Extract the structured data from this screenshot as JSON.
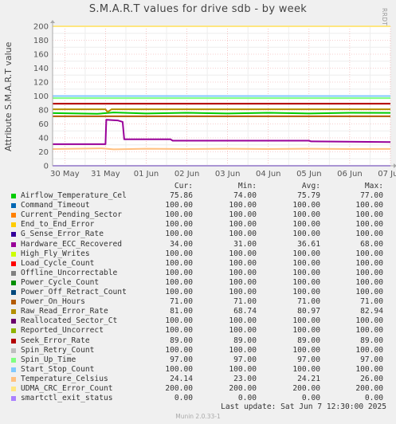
{
  "title": "S.M.A.R.T values for drive sdb - by week",
  "side_label": "RRDTOOL / TOBI OETIKER",
  "chart_data": {
    "type": "line",
    "title": "S.M.A.R.T values for drive sdb - by week",
    "ylabel": "Attribute S.M.A.R.T value",
    "xlabel": "",
    "ylim": [
      0,
      200
    ],
    "yticks": [
      0,
      20,
      40,
      60,
      80,
      100,
      120,
      140,
      160,
      180,
      200
    ],
    "x_categories": [
      "30 May",
      "31 May",
      "01 Jun",
      "02 Jun",
      "03 Jun",
      "04 Jun",
      "05 Jun",
      "06 Jun",
      "07 Jun"
    ],
    "x_range_days": [
      -0.3,
      8.0
    ],
    "grid": true,
    "legend_placement": "below",
    "series": [
      {
        "name": "Airflow_Temperature_Cel",
        "color": "#00cc00",
        "points": [
          [
            -0.3,
            75.5
          ],
          [
            0.8,
            74.5
          ],
          [
            1.2,
            76.5
          ],
          [
            2.0,
            75
          ],
          [
            3,
            76
          ],
          [
            4,
            75
          ],
          [
            5,
            76
          ],
          [
            6,
            75
          ],
          [
            7,
            76
          ],
          [
            8.0,
            75.86
          ]
        ]
      },
      {
        "name": "Command_Timeout",
        "color": "#0066b3",
        "points": [
          [
            -0.3,
            100
          ],
          [
            8.0,
            100
          ]
        ]
      },
      {
        "name": "Current_Pending_Sector",
        "color": "#ff8000",
        "points": [
          [
            -0.3,
            100
          ],
          [
            8.0,
            100
          ]
        ]
      },
      {
        "name": "End_to_End_Error",
        "color": "#ffcc00",
        "points": [
          [
            -0.3,
            100
          ],
          [
            8.0,
            100
          ]
        ]
      },
      {
        "name": "G_Sense_Error_Rate",
        "color": "#330099",
        "points": [
          [
            -0.3,
            100
          ],
          [
            8.0,
            100
          ]
        ]
      },
      {
        "name": "Hardware_ECC_Recovered",
        "color": "#990099",
        "points": [
          [
            -0.3,
            31
          ],
          [
            1.0,
            31
          ],
          [
            1.02,
            66
          ],
          [
            1.3,
            65
          ],
          [
            1.42,
            63
          ],
          [
            1.46,
            38
          ],
          [
            2.6,
            38
          ],
          [
            2.65,
            36
          ],
          [
            6.0,
            36
          ],
          [
            6.05,
            35
          ],
          [
            8.0,
            34
          ]
        ]
      },
      {
        "name": "High_Fly_Writes",
        "color": "#ccff00",
        "points": [
          [
            -0.3,
            100
          ],
          [
            8.0,
            100
          ]
        ]
      },
      {
        "name": "Load_Cycle_Count",
        "color": "#ff0000",
        "points": [
          [
            -0.3,
            100
          ],
          [
            8.0,
            100
          ]
        ]
      },
      {
        "name": "Offline_Uncorrectable",
        "color": "#808080",
        "points": [
          [
            -0.3,
            100
          ],
          [
            8.0,
            100
          ]
        ]
      },
      {
        "name": "Power_Cycle_Count",
        "color": "#008f00",
        "points": [
          [
            -0.3,
            100
          ],
          [
            8.0,
            100
          ]
        ]
      },
      {
        "name": "Power_Off_Retract_Count",
        "color": "#00487d",
        "points": [
          [
            -0.3,
            100
          ],
          [
            8.0,
            100
          ]
        ]
      },
      {
        "name": "Power_On_Hours",
        "color": "#b35a00",
        "points": [
          [
            -0.3,
            71
          ],
          [
            8.0,
            71
          ]
        ]
      },
      {
        "name": "Raw_Read_Error_Rate",
        "color": "#b38f00",
        "points": [
          [
            -0.3,
            81
          ],
          [
            1.0,
            81
          ],
          [
            1.05,
            77
          ],
          [
            1.15,
            81
          ],
          [
            8.0,
            81
          ]
        ]
      },
      {
        "name": "Reallocated_Sector_Ct",
        "color": "#6b006b",
        "points": [
          [
            -0.3,
            100
          ],
          [
            8.0,
            100
          ]
        ]
      },
      {
        "name": "Reported_Uncorrect",
        "color": "#8fb300",
        "points": [
          [
            -0.3,
            100
          ],
          [
            8.0,
            100
          ]
        ]
      },
      {
        "name": "Seek_Error_Rate",
        "color": "#b30000",
        "points": [
          [
            -0.3,
            89
          ],
          [
            8.0,
            89
          ]
        ]
      },
      {
        "name": "Spin_Retry_Count",
        "color": "#bebebe",
        "points": [
          [
            -0.3,
            100
          ],
          [
            8.0,
            100
          ]
        ]
      },
      {
        "name": "Spin_Up_Time",
        "color": "#80ff80",
        "points": [
          [
            -0.3,
            97
          ],
          [
            8.0,
            97
          ]
        ]
      },
      {
        "name": "Start_Stop_Count",
        "color": "#80c9ff",
        "points": [
          [
            -0.3,
            100
          ],
          [
            8.0,
            100
          ]
        ]
      },
      {
        "name": "Temperature_Celsius",
        "color": "#ffc080",
        "points": [
          [
            -0.3,
            24
          ],
          [
            0.9,
            25
          ],
          [
            1.2,
            23.5
          ],
          [
            2.0,
            24.5
          ],
          [
            3,
            24
          ],
          [
            4,
            24.5
          ],
          [
            5,
            24
          ],
          [
            6,
            24.5
          ],
          [
            7,
            24
          ],
          [
            8.0,
            24.14
          ]
        ]
      },
      {
        "name": "UDMA_CRC_Error_Count",
        "color": "#ffe680",
        "points": [
          [
            -0.3,
            200
          ],
          [
            8.0,
            200
          ]
        ]
      },
      {
        "name": "smartctl_exit_status",
        "color": "#aa80ff",
        "points": [
          [
            -0.3,
            0
          ],
          [
            8.0,
            0
          ]
        ]
      }
    ]
  },
  "legend": {
    "headers": {
      "cur": "Cur:",
      "min": "Min:",
      "avg": "Avg:",
      "max": "Max:"
    },
    "rows": [
      {
        "name": "Airflow_Temperature_Cel",
        "color": "#00cc00",
        "cur": "75.86",
        "min": "74.00",
        "avg": "75.79",
        "max": "77.00"
      },
      {
        "name": "Command_Timeout",
        "color": "#0066b3",
        "cur": "100.00",
        "min": "100.00",
        "avg": "100.00",
        "max": "100.00"
      },
      {
        "name": "Current_Pending_Sector",
        "color": "#ff8000",
        "cur": "100.00",
        "min": "100.00",
        "avg": "100.00",
        "max": "100.00"
      },
      {
        "name": "End_to_End_Error",
        "color": "#ffcc00",
        "cur": "100.00",
        "min": "100.00",
        "avg": "100.00",
        "max": "100.00"
      },
      {
        "name": "G_Sense_Error_Rate",
        "color": "#330099",
        "cur": "100.00",
        "min": "100.00",
        "avg": "100.00",
        "max": "100.00"
      },
      {
        "name": "Hardware_ECC_Recovered",
        "color": "#990099",
        "cur": "34.00",
        "min": "31.00",
        "avg": "36.61",
        "max": "68.00"
      },
      {
        "name": "High_Fly_Writes",
        "color": "#ccff00",
        "cur": "100.00",
        "min": "100.00",
        "avg": "100.00",
        "max": "100.00"
      },
      {
        "name": "Load_Cycle_Count",
        "color": "#ff0000",
        "cur": "100.00",
        "min": "100.00",
        "avg": "100.00",
        "max": "100.00"
      },
      {
        "name": "Offline_Uncorrectable",
        "color": "#808080",
        "cur": "100.00",
        "min": "100.00",
        "avg": "100.00",
        "max": "100.00"
      },
      {
        "name": "Power_Cycle_Count",
        "color": "#008f00",
        "cur": "100.00",
        "min": "100.00",
        "avg": "100.00",
        "max": "100.00"
      },
      {
        "name": "Power_Off_Retract_Count",
        "color": "#00487d",
        "cur": "100.00",
        "min": "100.00",
        "avg": "100.00",
        "max": "100.00"
      },
      {
        "name": "Power_On_Hours",
        "color": "#b35a00",
        "cur": "71.00",
        "min": "71.00",
        "avg": "71.00",
        "max": "71.00"
      },
      {
        "name": "Raw_Read_Error_Rate",
        "color": "#b38f00",
        "cur": "81.00",
        "min": "68.74",
        "avg": "80.97",
        "max": "82.94"
      },
      {
        "name": "Reallocated_Sector_Ct",
        "color": "#6b006b",
        "cur": "100.00",
        "min": "100.00",
        "avg": "100.00",
        "max": "100.00"
      },
      {
        "name": "Reported_Uncorrect",
        "color": "#8fb300",
        "cur": "100.00",
        "min": "100.00",
        "avg": "100.00",
        "max": "100.00"
      },
      {
        "name": "Seek_Error_Rate",
        "color": "#b30000",
        "cur": "89.00",
        "min": "89.00",
        "avg": "89.00",
        "max": "89.00"
      },
      {
        "name": "Spin_Retry_Count",
        "color": "#bebebe",
        "cur": "100.00",
        "min": "100.00",
        "avg": "100.00",
        "max": "100.00"
      },
      {
        "name": "Spin_Up_Time",
        "color": "#80ff80",
        "cur": "97.00",
        "min": "97.00",
        "avg": "97.00",
        "max": "97.00"
      },
      {
        "name": "Start_Stop_Count",
        "color": "#80c9ff",
        "cur": "100.00",
        "min": "100.00",
        "avg": "100.00",
        "max": "100.00"
      },
      {
        "name": "Temperature_Celsius",
        "color": "#ffc080",
        "cur": "24.14",
        "min": "23.00",
        "avg": "24.21",
        "max": "26.00"
      },
      {
        "name": "UDMA_CRC_Error_Count",
        "color": "#ffe680",
        "cur": "200.00",
        "min": "200.00",
        "avg": "200.00",
        "max": "200.00"
      },
      {
        "name": "smartctl_exit_status",
        "color": "#aa80ff",
        "cur": "0.00",
        "min": "0.00",
        "avg": "0.00",
        "max": "0.00"
      }
    ]
  },
  "last_update": "Last update:  Sat Jun  7 12:30:00 2025",
  "footer": "Munin 2.0.33-1"
}
